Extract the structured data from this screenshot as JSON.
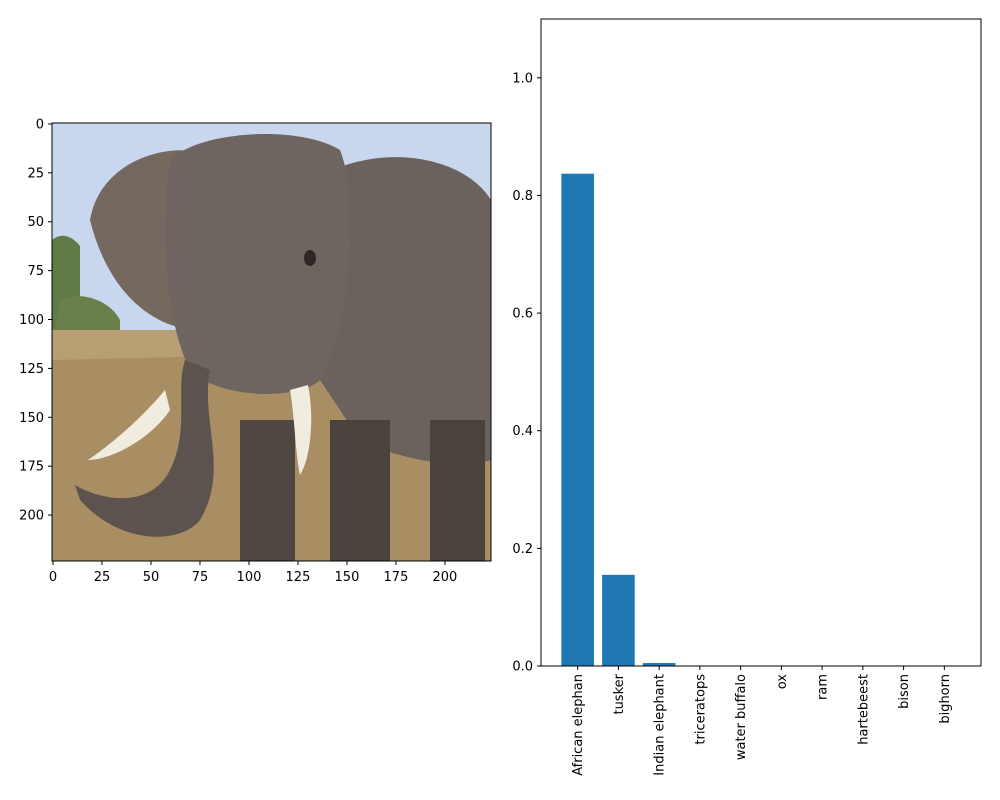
{
  "image_panel": {
    "description_free": true,
    "x_ticks": [
      "0",
      "25",
      "50",
      "75",
      "100",
      "125",
      "150",
      "175",
      "200"
    ],
    "x_tick_values": [
      0,
      25,
      50,
      75,
      100,
      125,
      150,
      175,
      200
    ],
    "y_ticks": [
      "0",
      "25",
      "50",
      "75",
      "100",
      "125",
      "150",
      "175",
      "200"
    ],
    "y_tick_values": [
      0,
      25,
      50,
      75,
      100,
      125,
      150,
      175,
      200
    ],
    "xlim": [
      -0.5,
      223.5
    ],
    "ylim": [
      223.5,
      -0.5
    ]
  },
  "chart_data": {
    "type": "bar",
    "categories": [
      "African elephan",
      "tusker",
      "Indian elephant",
      "triceratops",
      "water buffalo",
      "ox",
      "ram",
      "hartebeest",
      "bison",
      "bighorn"
    ],
    "values": [
      0.837,
      0.155,
      0.005,
      0.0005,
      0.0004,
      0.0003,
      0.0002,
      0.0002,
      0.0002,
      0.0001
    ],
    "ylim": [
      0,
      1.1
    ],
    "y_ticks": [
      "0.0",
      "0.2",
      "0.4",
      "0.6",
      "0.8",
      "1.0"
    ],
    "y_tick_values": [
      0,
      0.2,
      0.4,
      0.6,
      0.8,
      1.0
    ],
    "bar_color": "#1f77b4",
    "title": "",
    "xlabel": "",
    "ylabel": "",
    "grid": false
  },
  "colors": {
    "sky": "#c9d7ee",
    "grass": "#b89f73",
    "elephant": "#6e6560",
    "elephant_dark": "#4a423d",
    "tusk": "#f1ece0",
    "trees": "#5e7a45"
  }
}
